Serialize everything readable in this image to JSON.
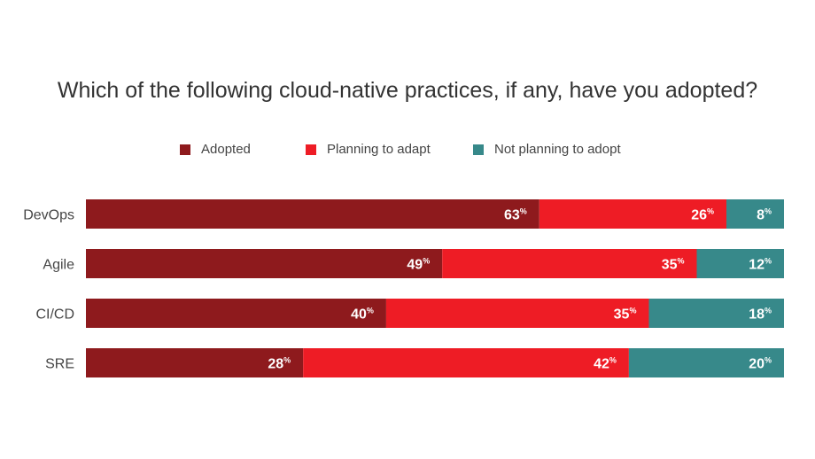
{
  "chart_data": {
    "type": "bar",
    "orientation": "horizontal",
    "stacked": true,
    "normalized": true,
    "title": "Which of the following cloud-native practices, if any, have you adopted?",
    "categories": [
      "DevOps",
      "Agile",
      "CI/CD",
      "SRE"
    ],
    "series": [
      {
        "name": "Adopted",
        "color": "#8e1a1d",
        "values": [
          63,
          49,
          40,
          28
        ]
      },
      {
        "name": "Planning to adapt",
        "color": "#ee1c25",
        "values": [
          26,
          35,
          35,
          42
        ]
      },
      {
        "name": "Not planning to adopt",
        "color": "#37898a",
        "values": [
          8,
          12,
          18,
          20
        ]
      }
    ],
    "value_suffix": "%",
    "legend_position": "top",
    "grid": false
  }
}
